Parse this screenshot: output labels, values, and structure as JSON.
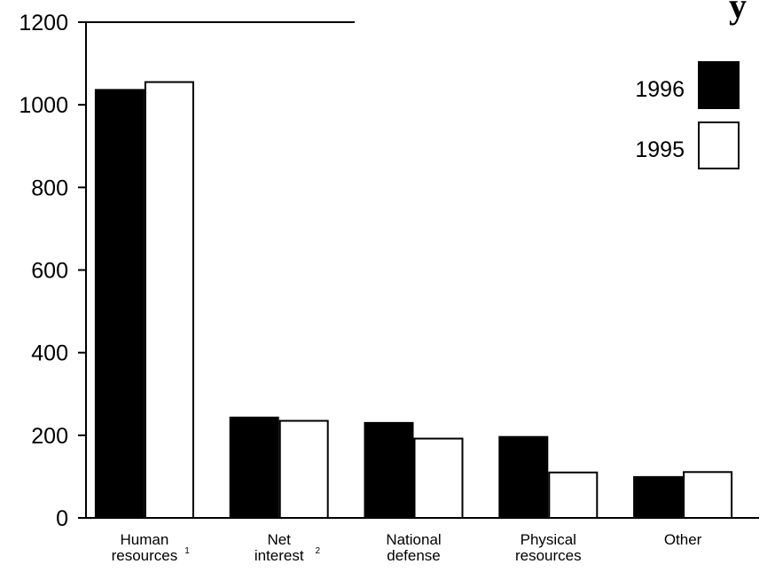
{
  "chart_data": {
    "type": "bar",
    "title": "y",
    "xlabel": "",
    "ylabel": "",
    "ylim": [
      0,
      1200
    ],
    "yticks": [
      0,
      200,
      400,
      600,
      800,
      1000,
      1200
    ],
    "grid": false,
    "legend_position": "top-right",
    "categories": [
      {
        "lines": [
          "Human",
          "resources"
        ],
        "note": "1"
      },
      {
        "lines": [
          "Net",
          "interest"
        ],
        "note": "2"
      },
      {
        "lines": [
          "National",
          "defense"
        ],
        "note": ""
      },
      {
        "lines": [
          "Physical",
          "resources"
        ],
        "note": ""
      },
      {
        "lines": [
          "Other"
        ],
        "note": ""
      }
    ],
    "series": [
      {
        "name": "1996",
        "fill": "#000000",
        "values": [
          1036,
          243,
          230,
          196,
          99
        ]
      },
      {
        "name": "1995",
        "fill": "#ffffff",
        "values": [
          1055,
          235,
          192,
          110,
          111
        ]
      }
    ]
  }
}
